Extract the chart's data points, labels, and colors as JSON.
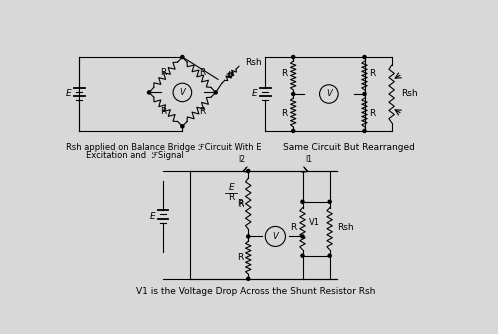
{
  "bg_color": "#d8d8d8",
  "line_color": "#000000",
  "font_size": 6.5,
  "caption1_line1": "Rsh applied on Balance Bridge ℱCircuit With E",
  "caption1_line2": "Excitation and  ℱSignal",
  "caption2": "Same Circuit But Rearranged",
  "caption3": "V1 is the Voltage Drop Across the Shunt Resistor Rsh"
}
